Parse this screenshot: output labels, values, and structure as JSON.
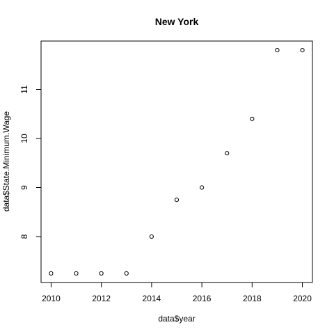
{
  "chart_data": {
    "type": "scatter",
    "title": "New York",
    "xlabel": "data$year",
    "ylabel": "data$State.Minimum.Wage",
    "x": [
      2010,
      2011,
      2012,
      2013,
      2014,
      2015,
      2016,
      2017,
      2018,
      2019,
      2020
    ],
    "y": [
      7.25,
      7.25,
      7.25,
      7.25,
      8.0,
      8.75,
      9.0,
      9.7,
      10.4,
      11.8,
      11.8
    ],
    "xlim": [
      2009.6,
      2020.4
    ],
    "ylim": [
      7.064,
      11.986
    ],
    "xticks": [
      2010,
      2012,
      2014,
      2016,
      2018,
      2020
    ],
    "yticks": [
      8,
      9,
      10,
      11
    ],
    "grid": false,
    "marker": "open-circle",
    "colors": {
      "point_stroke": "#000000",
      "axis": "#000000",
      "background": "#ffffff"
    }
  }
}
